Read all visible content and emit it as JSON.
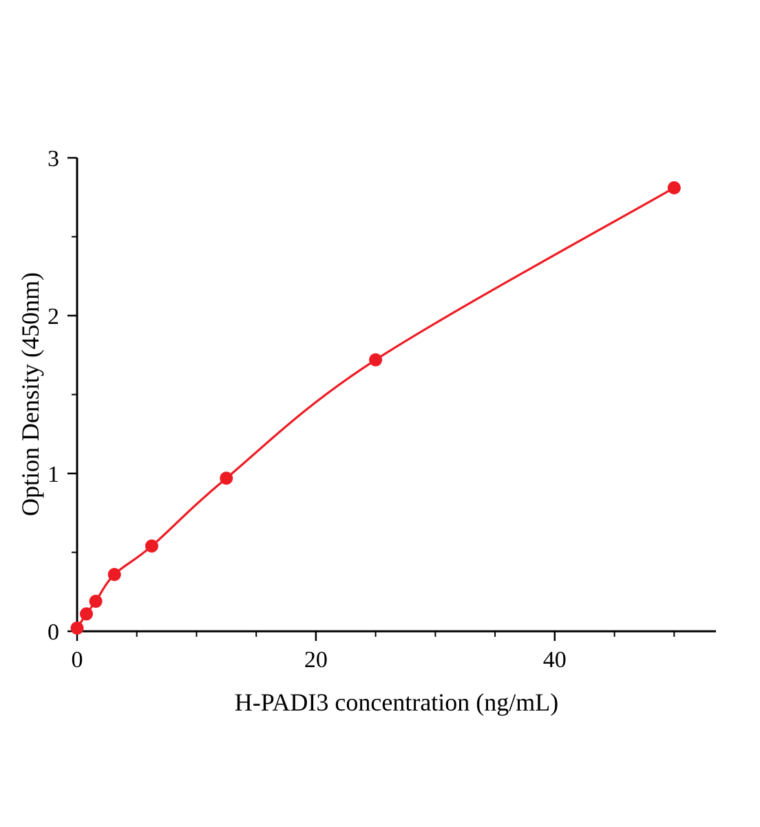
{
  "chart_data": {
    "type": "scatter",
    "title": "",
    "xlabel": "H-PADI3 concentration (ng/mL)",
    "ylabel": "Option Density (450nm)",
    "x": [
      0,
      0.78,
      1.56,
      3.125,
      6.25,
      12.5,
      25,
      50
    ],
    "y": [
      0.02,
      0.11,
      0.19,
      0.36,
      0.54,
      0.97,
      1.72,
      2.81
    ],
    "xlim": [
      0,
      53.5
    ],
    "ylim": [
      0,
      3
    ],
    "x_major_ticks": [
      0,
      20,
      40
    ],
    "x_minor_ticks": [
      5,
      10,
      15,
      25,
      30,
      35,
      45,
      50
    ],
    "y_major_ticks": [
      0,
      1,
      2,
      3
    ],
    "y_minor_ticks": [
      0.5,
      1.5,
      2.5
    ],
    "marker_color": "#ed1c24",
    "line_color": "#ed1c24",
    "axis_color": "#000000",
    "grid": false,
    "legend": null
  }
}
